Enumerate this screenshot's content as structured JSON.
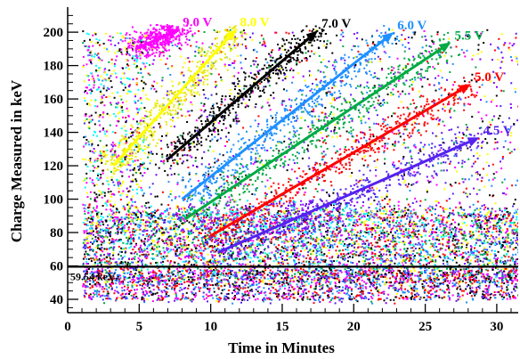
{
  "chart_data": {
    "type": "scatter",
    "title": "",
    "xlabel": "Time in Minutes",
    "ylabel": "Charge Measured in keV",
    "xlim": [
      0,
      31.5
    ],
    "ylim": [
      32,
      215
    ],
    "x_ticks": [
      0,
      5,
      10,
      15,
      20,
      25,
      30
    ],
    "y_ticks": [
      40,
      60,
      80,
      100,
      120,
      140,
      160,
      180,
      200
    ],
    "grid": false,
    "reference_line": {
      "y": 59.54,
      "label": "59.54 keV",
      "color": "#000000"
    },
    "series": [
      {
        "name": "9.0 V",
        "color": "#ff00ff",
        "arrow": {
          "x0": 4.8,
          "y0": 190,
          "x1": 7.8,
          "y1": 202
        }
      },
      {
        "name": "8.0 V",
        "color": "#ffff00",
        "arrow": {
          "x0": 3.2,
          "y0": 120,
          "x1": 11.8,
          "y1": 202
        }
      },
      {
        "name": "7.0 V",
        "color": "#000000",
        "arrow": {
          "x0": 7.0,
          "y0": 124,
          "x1": 17.5,
          "y1": 201
        }
      },
      {
        "name": "6.0 V",
        "color": "#1e90ff",
        "arrow": {
          "x0": 8.0,
          "y0": 100,
          "x1": 22.8,
          "y1": 200
        }
      },
      {
        "name": "5.5 V",
        "color": "#00aa44",
        "arrow": {
          "x0": 8.2,
          "y0": 88,
          "x1": 26.8,
          "y1": 194
        }
      },
      {
        "name": "5.0 V",
        "color": "#ff0000",
        "arrow": {
          "x0": 10.0,
          "y0": 78,
          "x1": 28.2,
          "y1": 169
        }
      },
      {
        "name": "4.5 V",
        "color": "#5522ee",
        "arrow": {
          "x0": 10.5,
          "y0": 68,
          "x1": 28.8,
          "y1": 137
        }
      }
    ]
  }
}
